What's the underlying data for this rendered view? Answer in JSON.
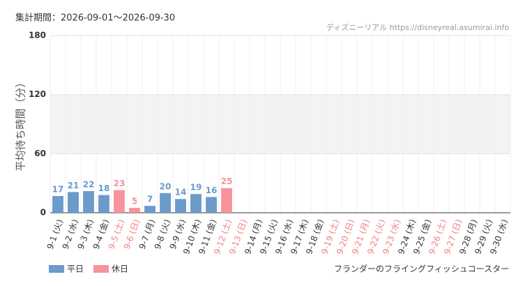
{
  "chart_data": {
    "type": "bar",
    "title": "集計期間：2026-09-01〜2026-09-30",
    "source": "ディズニーリアル https://disneyreal.asumirai.info",
    "y_label": "平均待ち時間（分）",
    "footer": "フランダーのフライングフィッシュコースター",
    "categories": [
      "9-1 (火)",
      "9-2 (水)",
      "9-3 (木)",
      "9-4 (金)",
      "9-5 (土)",
      "9-6 (日)",
      "9-7 (月)",
      "9-8 (火)",
      "9-9 (水)",
      "9-10 (木)",
      "9-11 (金)",
      "9-12 (土)",
      "9-13 (日)",
      "9-14 (月)",
      "9-15 (火)",
      "9-16 (水)",
      "9-17 (木)",
      "9-18 (金)",
      "9-19 (土)",
      "9-20 (日)",
      "9-21 (月)",
      "9-22 (火)",
      "9-23 (水)",
      "9-24 (木)",
      "9-25 (金)",
      "9-26 (土)",
      "9-27 (日)",
      "9-28 (月)",
      "9-29 (火)",
      "9-30 (水)"
    ],
    "category_colors": [
      "#333",
      "#333",
      "#333",
      "#333",
      "#f08080",
      "#f08080",
      "#333",
      "#333",
      "#333",
      "#333",
      "#333",
      "#f08080",
      "#f08080",
      "#333",
      "#333",
      "#333",
      "#333",
      "#333",
      "#f08080",
      "#f08080",
      "#f08080",
      "#f08080",
      "#f08080",
      "#333",
      "#333",
      "#f08080",
      "#f08080",
      "#333",
      "#333",
      "#333"
    ],
    "series": [
      {
        "name": "平日",
        "color": "#6b9acb",
        "values": [
          17,
          21,
          22,
          18,
          null,
          null,
          7,
          20,
          14,
          19,
          16,
          null,
          null,
          null,
          null,
          null,
          null,
          null,
          null,
          null,
          null,
          null,
          null,
          null,
          null,
          null,
          null,
          null,
          null,
          null
        ]
      },
      {
        "name": "休日",
        "color": "#f7939a",
        "values": [
          null,
          null,
          null,
          null,
          23,
          5,
          null,
          null,
          null,
          null,
          null,
          25,
          null,
          null,
          null,
          null,
          null,
          null,
          null,
          null,
          null,
          null,
          null,
          null,
          null,
          null,
          null,
          null,
          null,
          null
        ]
      }
    ],
    "ylim": [
      0,
      180
    ],
    "yticks": [
      0,
      60,
      120,
      180
    ],
    "grid": true
  }
}
